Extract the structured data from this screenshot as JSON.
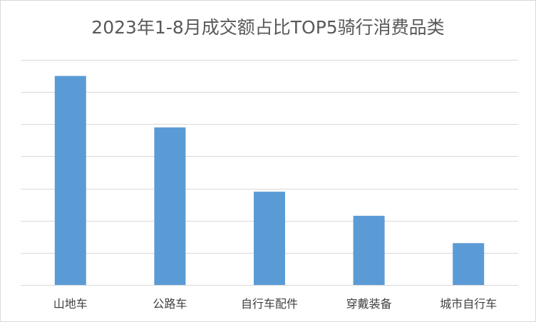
{
  "chart_data": {
    "type": "bar",
    "title": "2023年1-8月成交额占比TOP5骑行消费品类",
    "categories": [
      "山地车",
      "公路车",
      "自行车配件",
      "穿戴装备",
      "城市自行车"
    ],
    "values": [
      6.5,
      4.9,
      2.9,
      2.15,
      1.3
    ],
    "xlabel": "",
    "ylabel": "",
    "ylim": [
      0,
      7
    ],
    "ytick_step": 1,
    "y_tick_labels_visible": false,
    "grid": true,
    "legend": "none",
    "colors": {
      "bar": "#5b9bd5",
      "grid": "#d9d9d9",
      "text": "#595959"
    }
  }
}
